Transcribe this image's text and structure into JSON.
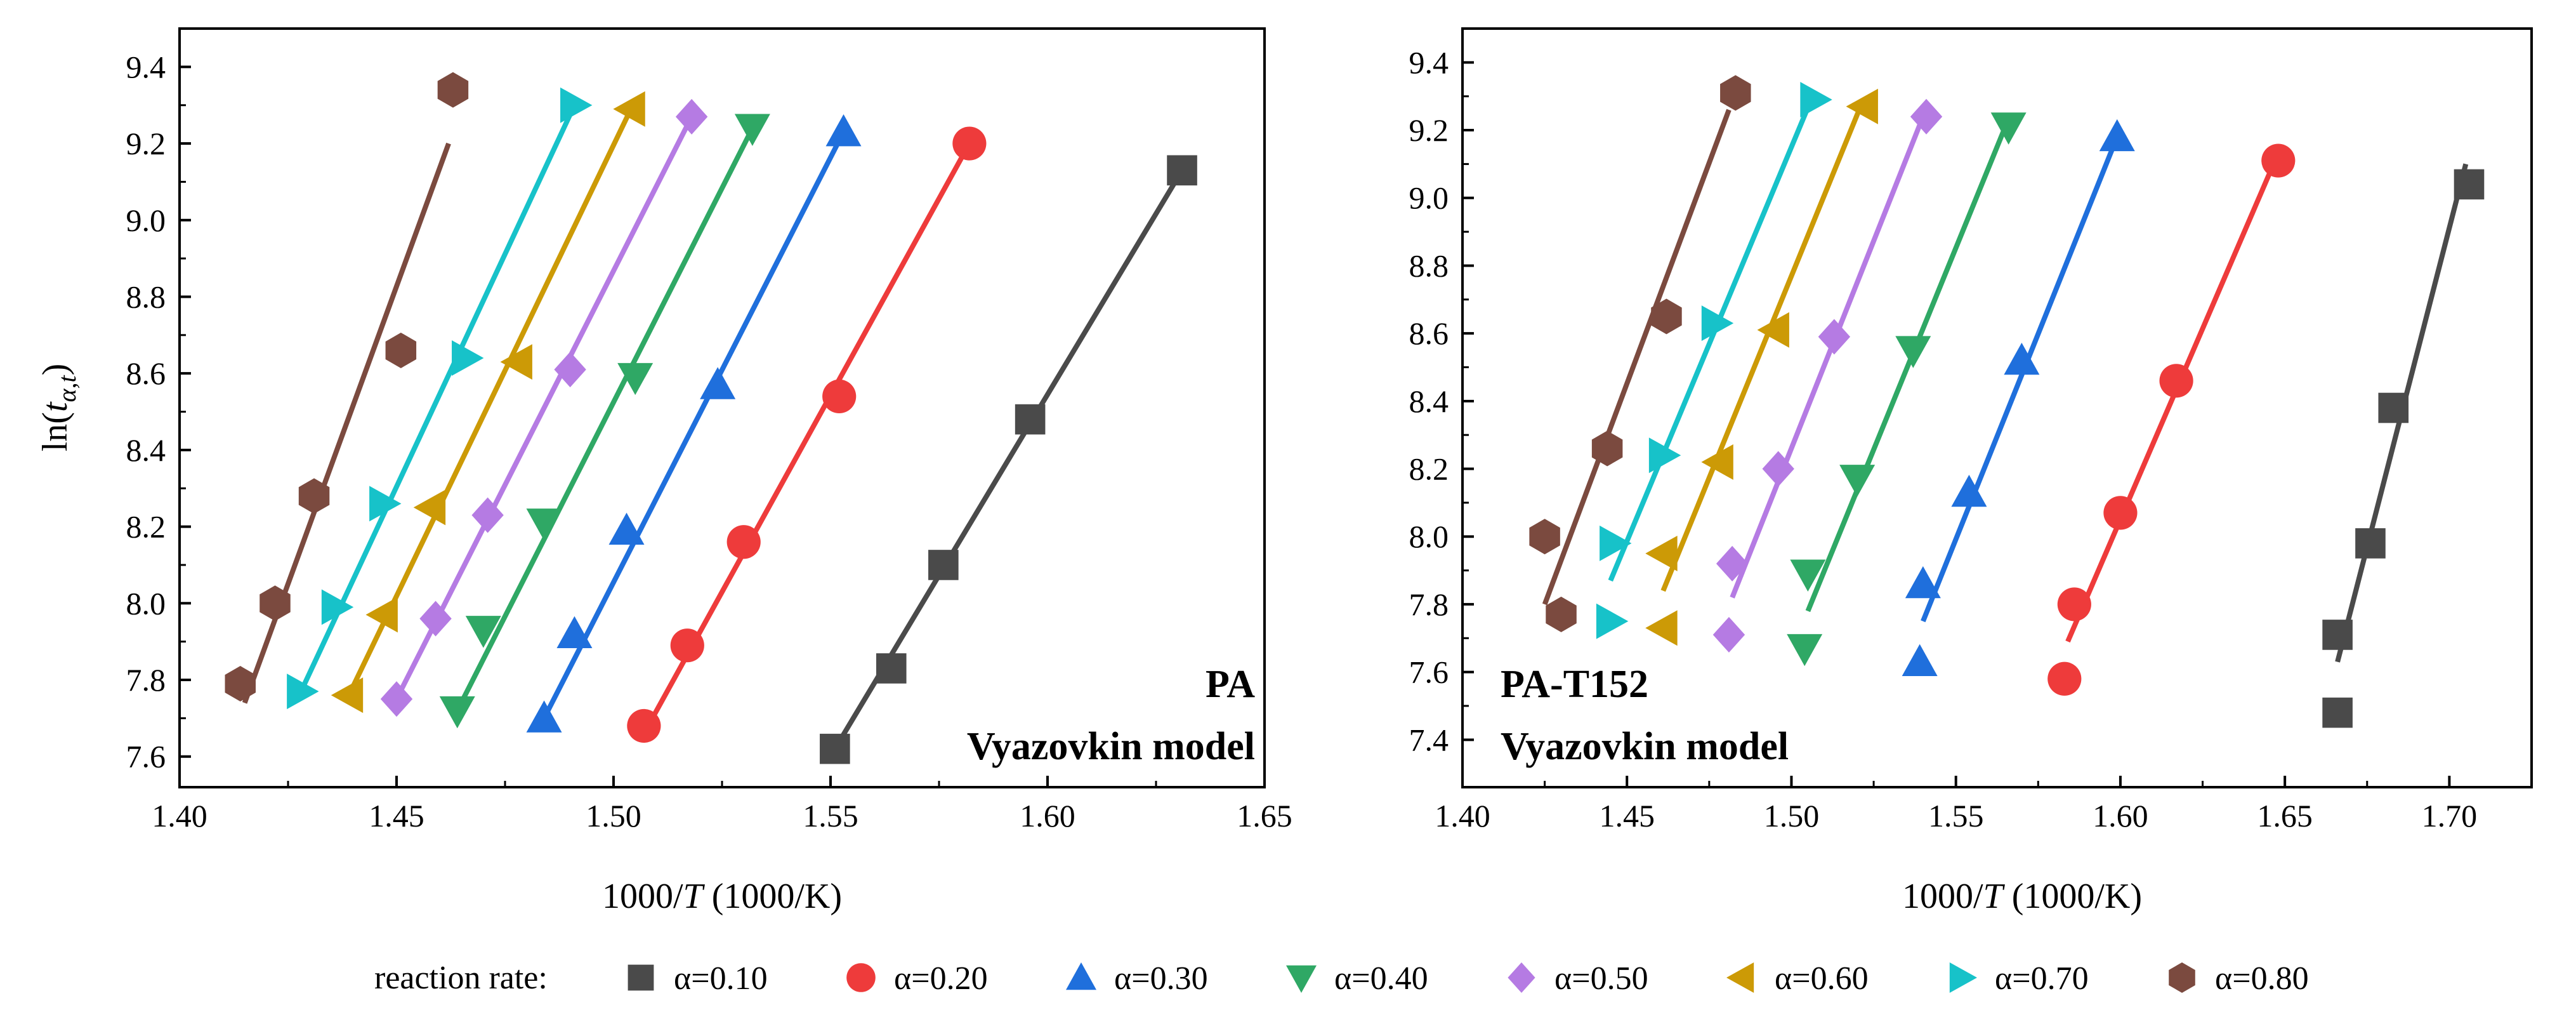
{
  "colors": {
    "a010": "#4a4a4a",
    "a020": "#ee3b3b",
    "a030": "#1f6fdc",
    "a040": "#2fa865",
    "a050": "#b57be3",
    "a060": "#cc9a06",
    "a070": "#17c2c9",
    "a080": "#7b4a3f"
  },
  "legend": {
    "title": "reaction rate:",
    "items": [
      {
        "label": "α=0.10",
        "marker": "square",
        "color": "#4a4a4a"
      },
      {
        "label": "α=0.20",
        "marker": "circle",
        "color": "#ee3b3b"
      },
      {
        "label": "α=0.30",
        "marker": "triangle-up",
        "color": "#1f6fdc"
      },
      {
        "label": "α=0.40",
        "marker": "triangle-down",
        "color": "#2fa865"
      },
      {
        "label": "α=0.50",
        "marker": "diamond",
        "color": "#b57be3"
      },
      {
        "label": "α=0.60",
        "marker": "triangle-left",
        "color": "#cc9a06"
      },
      {
        "label": "α=0.70",
        "marker": "triangle-right",
        "color": "#17c2c9"
      },
      {
        "label": "α=0.80",
        "marker": "hexagon",
        "color": "#7b4a3f"
      }
    ]
  },
  "chart_data": [
    {
      "type": "scatter",
      "title": "",
      "annotation_lines": [
        "PA",
        "Vyazovkin model"
      ],
      "xlabel_main": "1000/",
      "xlabel_italic": "T",
      "xlabel_unit": " (1000/K)",
      "ylabel_prefix": "ln(",
      "ylabel_italic": "t",
      "ylabel_sub": "α,t",
      "ylabel_suffix": ")",
      "xlim": [
        1.4,
        1.65
      ],
      "ylim": [
        7.52,
        9.5
      ],
      "xticks": [
        1.4,
        1.45,
        1.5,
        1.55,
        1.6,
        1.65
      ],
      "xtick_labels": [
        "1.40",
        "1.45",
        "1.50",
        "1.55",
        "1.60",
        "1.65"
      ],
      "yticks": [
        7.6,
        7.8,
        8.0,
        8.2,
        8.4,
        8.6,
        8.8,
        9.0,
        9.2,
        9.4
      ],
      "ytick_labels": [
        "7.6",
        "7.8",
        "8.0",
        "8.2",
        "8.4",
        "8.6",
        "8.8",
        "9.0",
        "9.2",
        "9.4"
      ],
      "series": [
        {
          "name": "α=0.10",
          "x": [
            1.551,
            1.564,
            1.576,
            1.596,
            1.631
          ],
          "y": [
            7.62,
            7.83,
            8.1,
            8.48,
            9.13
          ],
          "fit": [
            [
              1.551,
              7.62
            ],
            [
              1.631,
              9.13
            ]
          ]
        },
        {
          "name": "α=0.20",
          "x": [
            1.507,
            1.517,
            1.53,
            1.552,
            1.582
          ],
          "y": [
            7.68,
            7.89,
            8.16,
            8.54,
            9.2
          ],
          "fit": [
            [
              1.507,
              7.66
            ],
            [
              1.582,
              9.2
            ]
          ]
        },
        {
          "name": "α=0.30",
          "x": [
            1.484,
            1.491,
            1.503,
            1.524,
            1.553
          ],
          "y": [
            7.7,
            7.92,
            8.19,
            8.57,
            9.23
          ],
          "fit": [
            [
              1.484,
              7.7
            ],
            [
              1.553,
              9.23
            ]
          ]
        },
        {
          "name": "α=0.40",
          "x": [
            1.464,
            1.47,
            1.484,
            1.505,
            1.532
          ],
          "y": [
            7.72,
            7.93,
            8.21,
            8.59,
            9.24
          ],
          "fit": [
            [
              1.464,
              7.72
            ],
            [
              1.532,
              9.24
            ]
          ]
        },
        {
          "name": "α=0.50",
          "x": [
            1.45,
            1.459,
            1.471,
            1.49,
            1.518
          ],
          "y": [
            7.75,
            7.96,
            8.23,
            8.61,
            9.27
          ],
          "fit": [
            [
              1.45,
              7.75
            ],
            [
              1.518,
              9.27
            ]
          ]
        },
        {
          "name": "α=0.60",
          "x": [
            1.439,
            1.447,
            1.458,
            1.478,
            1.504
          ],
          "y": [
            7.76,
            7.97,
            8.25,
            8.63,
            9.29
          ],
          "fit": [
            [
              1.439,
              7.76
            ],
            [
              1.504,
              9.29
            ]
          ]
        },
        {
          "name": "α=0.70",
          "x": [
            1.428,
            1.436,
            1.447,
            1.466,
            1.491
          ],
          "y": [
            7.77,
            7.99,
            8.26,
            8.64,
            9.3
          ],
          "fit": [
            [
              1.428,
              7.77
            ],
            [
              1.491,
              9.3
            ]
          ]
        },
        {
          "name": "α=0.80",
          "x": [
            1.414,
            1.422,
            1.431,
            1.451,
            1.463
          ],
          "y": [
            7.79,
            8.0,
            8.28,
            8.66,
            9.34
          ],
          "fit": [
            [
              1.415,
              7.74
            ],
            [
              1.462,
              9.2
            ]
          ]
        }
      ]
    },
    {
      "type": "scatter",
      "title": "",
      "annotation_lines": [
        "PA-T152",
        "Vyazovkin model"
      ],
      "xlabel_main": "1000/",
      "xlabel_italic": "T",
      "xlabel_unit": " (1000/K)",
      "xlim": [
        1.4,
        1.725
      ],
      "ylim": [
        7.26,
        9.5
      ],
      "xticks": [
        1.4,
        1.45,
        1.5,
        1.55,
        1.6,
        1.65,
        1.7
      ],
      "xtick_labels": [
        "1.40",
        "1.45",
        "1.50",
        "1.55",
        "1.60",
        "1.65",
        "1.70"
      ],
      "yticks": [
        7.4,
        7.6,
        7.8,
        8.0,
        8.2,
        8.4,
        8.6,
        8.8,
        9.0,
        9.2,
        9.4
      ],
      "ytick_labels": [
        "7.4",
        "7.6",
        "7.8",
        "8.0",
        "8.2",
        "8.4",
        "8.6",
        "8.8",
        "9.0",
        "9.2",
        "9.4"
      ],
      "series": [
        {
          "name": "α=0.10",
          "x": [
            1.666,
            1.666,
            1.676,
            1.683,
            1.706
          ],
          "y": [
            7.48,
            7.71,
            7.98,
            8.38,
            9.04
          ],
          "fit": [
            [
              1.666,
              7.63
            ],
            [
              1.705,
              9.1
            ]
          ]
        },
        {
          "name": "α=0.20",
          "x": [
            1.583,
            1.586,
            1.6,
            1.617,
            1.648
          ],
          "y": [
            7.58,
            7.8,
            8.07,
            8.46,
            9.11
          ],
          "fit": [
            [
              1.584,
              7.69
            ],
            [
              1.647,
              9.11
            ]
          ]
        },
        {
          "name": "α=0.30",
          "x": [
            1.539,
            1.54,
            1.554,
            1.57,
            1.599
          ],
          "y": [
            7.63,
            7.86,
            8.13,
            8.52,
            9.18
          ],
          "fit": [
            [
              1.54,
              7.75
            ],
            [
              1.599,
              9.18
            ]
          ]
        },
        {
          "name": "α=0.40",
          "x": [
            1.504,
            1.505,
            1.52,
            1.537,
            1.566
          ],
          "y": [
            7.67,
            7.89,
            8.17,
            8.55,
            9.21
          ],
          "fit": [
            [
              1.505,
              7.78
            ],
            [
              1.565,
              9.21
            ]
          ]
        },
        {
          "name": "α=0.50",
          "x": [
            1.481,
            1.482,
            1.496,
            1.513,
            1.541
          ],
          "y": [
            7.71,
            7.92,
            8.2,
            8.59,
            9.24
          ],
          "fit": [
            [
              1.482,
              7.82
            ],
            [
              1.54,
              9.24
            ]
          ]
        },
        {
          "name": "α=0.60",
          "x": [
            1.461,
            1.461,
            1.478,
            1.495,
            1.522
          ],
          "y": [
            7.73,
            7.95,
            8.22,
            8.61,
            9.27
          ],
          "fit": [
            [
              1.461,
              7.84
            ],
            [
              1.521,
              9.27
            ]
          ]
        },
        {
          "name": "α=0.70",
          "x": [
            1.445,
            1.446,
            1.461,
            1.477,
            1.507
          ],
          "y": [
            7.75,
            7.98,
            8.24,
            8.63,
            9.29
          ],
          "fit": [
            [
              1.445,
              7.87
            ],
            [
              1.506,
              9.29
            ]
          ]
        },
        {
          "name": "α=0.80",
          "x": [
            1.425,
            1.43,
            1.444,
            1.462,
            1.483
          ],
          "y": [
            8.0,
            7.77,
            8.26,
            8.65,
            9.31
          ],
          "fit": [
            [
              1.425,
              7.8
            ],
            [
              1.481,
              9.26
            ]
          ]
        }
      ]
    }
  ]
}
